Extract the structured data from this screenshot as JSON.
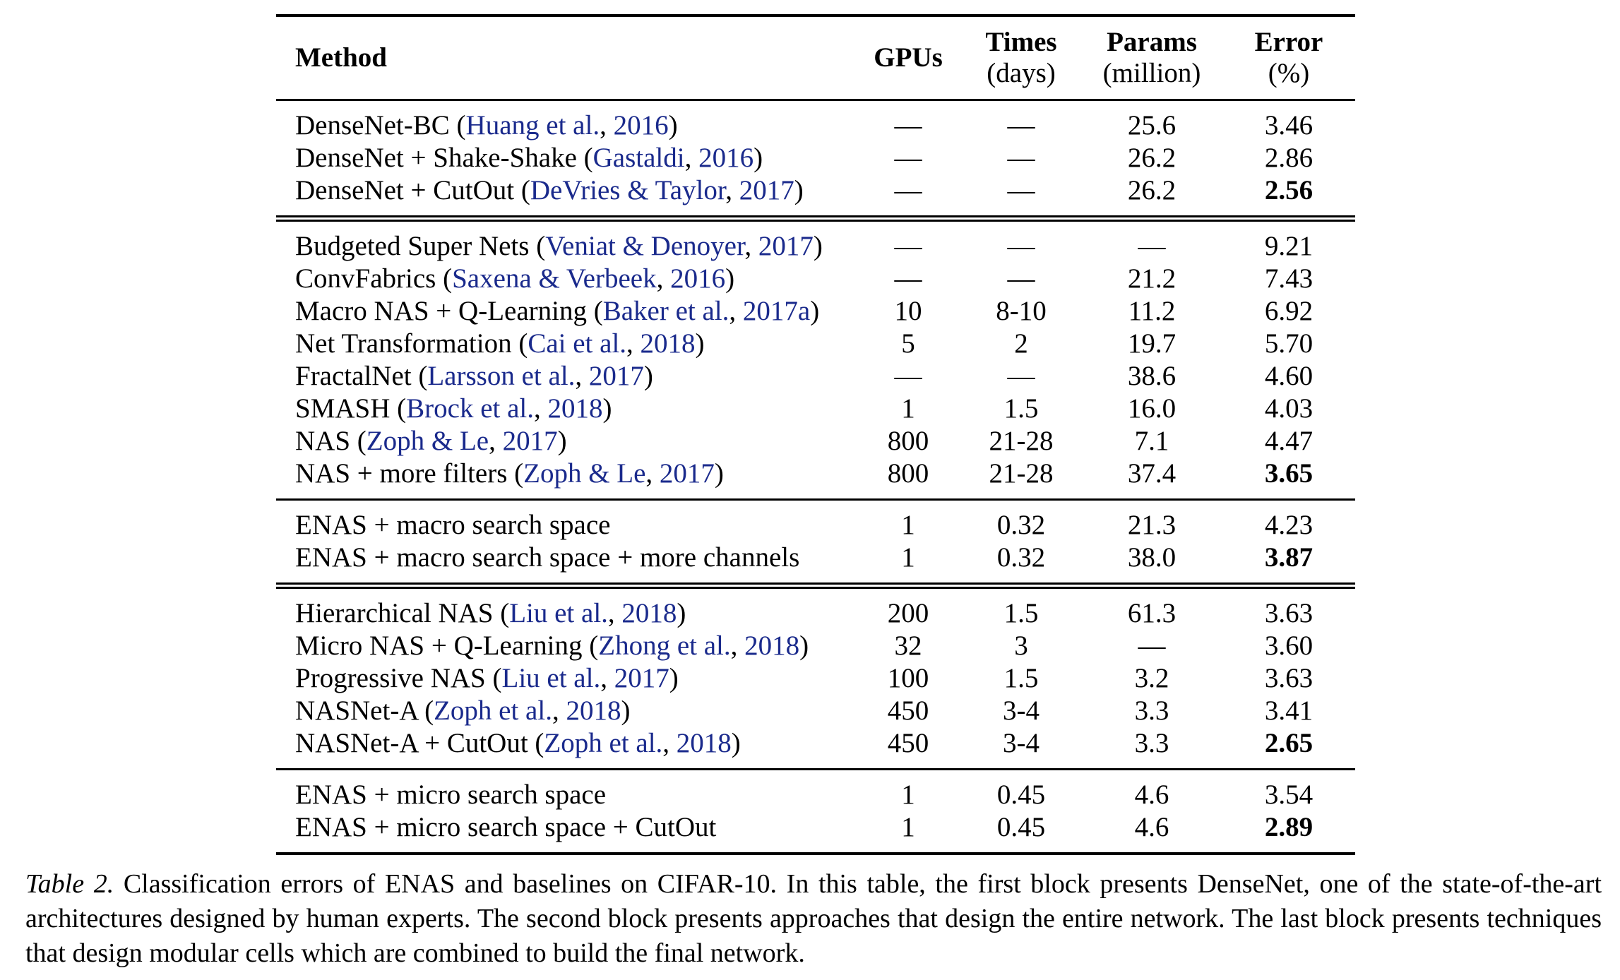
{
  "table": {
    "headers": {
      "method": "Method",
      "gpus": "GPUs",
      "times": "Times",
      "times_unit": "(days)",
      "params": "Params",
      "params_unit": "(million)",
      "error": "Error",
      "error_unit": "(%)"
    },
    "blocks": [
      {
        "rows": [
          {
            "name": "DenseNet-BC",
            "open": " (",
            "ref": "Huang et al.",
            "sep": ", ",
            "year": "2016",
            "close": ")",
            "gpus": "—",
            "times": "—",
            "params": "25.6",
            "error": "3.46",
            "bold": false
          },
          {
            "name": "DenseNet + Shake-Shake",
            "open": " (",
            "ref": "Gastaldi",
            "sep": ", ",
            "year": "2016",
            "close": ")",
            "gpus": "—",
            "times": "—",
            "params": "26.2",
            "error": "2.86",
            "bold": false
          },
          {
            "name": "DenseNet + CutOut",
            "open": " (",
            "ref": "DeVries & Taylor",
            "sep": ", ",
            "year": "2017",
            "close": ")",
            "gpus": "—",
            "times": "—",
            "params": "26.2",
            "error": "2.56",
            "bold": true
          }
        ]
      },
      {
        "rows": [
          {
            "name": "Budgeted Super Nets",
            "open": " (",
            "ref": "Veniat & Denoyer",
            "sep": ", ",
            "year": "2017",
            "close": ")",
            "gpus": "—",
            "times": "—",
            "params": "—",
            "error": "9.21",
            "bold": false
          },
          {
            "name": "ConvFabrics",
            "open": " (",
            "ref": "Saxena & Verbeek",
            "sep": ", ",
            "year": "2016",
            "close": ")",
            "gpus": "—",
            "times": "—",
            "params": "21.2",
            "error": "7.43",
            "bold": false
          },
          {
            "name": "Macro NAS + Q-Learning",
            "open": " (",
            "ref": "Baker et al.",
            "sep": ", ",
            "year": "2017a",
            "close": ")",
            "gpus": "10",
            "times": "8-10",
            "params": "11.2",
            "error": "6.92",
            "bold": false
          },
          {
            "name": "Net Transformation",
            "open": " (",
            "ref": "Cai et al.",
            "sep": ", ",
            "year": "2018",
            "close": ")",
            "gpus": "5",
            "times": "2",
            "params": "19.7",
            "error": "5.70",
            "bold": false
          },
          {
            "name": "FractalNet",
            "open": " (",
            "ref": "Larsson et al.",
            "sep": ", ",
            "year": "2017",
            "close": ")",
            "gpus": "—",
            "times": "—",
            "params": "38.6",
            "error": "4.60",
            "bold": false
          },
          {
            "name": "SMASH",
            "open": " (",
            "ref": "Brock et al.",
            "sep": ", ",
            "year": "2018",
            "close": ")",
            "gpus": "1",
            "times": "1.5",
            "params": "16.0",
            "error": "4.03",
            "bold": false
          },
          {
            "name": "NAS",
            "open": " (",
            "ref": "Zoph & Le",
            "sep": ", ",
            "year": "2017",
            "close": ")",
            "gpus": "800",
            "times": "21-28",
            "params": "7.1",
            "error": "4.47",
            "bold": false
          },
          {
            "name": "NAS + more filters",
            "open": " (",
            "ref": "Zoph & Le",
            "sep": ", ",
            "year": "2017",
            "close": ")",
            "gpus": "800",
            "times": "21-28",
            "params": "37.4",
            "error": "3.65",
            "bold": true
          }
        ]
      },
      {
        "rows": [
          {
            "name": "ENAS + macro search space",
            "open": "",
            "ref": "",
            "sep": "",
            "year": "",
            "close": "",
            "gpus": "1",
            "times": "0.32",
            "params": "21.3",
            "error": "4.23",
            "bold": false
          },
          {
            "name": "ENAS + macro search space + more channels",
            "open": "",
            "ref": "",
            "sep": "",
            "year": "",
            "close": "",
            "gpus": "1",
            "times": "0.32",
            "params": "38.0",
            "error": "3.87",
            "bold": true
          }
        ]
      },
      {
        "rows": [
          {
            "name": "Hierarchical NAS",
            "open": " (",
            "ref": "Liu et al.",
            "sep": ", ",
            "year": "2018",
            "close": ")",
            "gpus": "200",
            "times": "1.5",
            "params": "61.3",
            "error": "3.63",
            "bold": false
          },
          {
            "name": "Micro NAS + Q-Learning",
            "open": " (",
            "ref": "Zhong et al.",
            "sep": ", ",
            "year": "2018",
            "close": ")",
            "gpus": "32",
            "times": "3",
            "params": "—",
            "error": "3.60",
            "bold": false
          },
          {
            "name": "Progressive NAS",
            "open": " (",
            "ref": "Liu et al.",
            "sep": ", ",
            "year": "2017",
            "close": ")",
            "gpus": "100",
            "times": "1.5",
            "params": "3.2",
            "error": "3.63",
            "bold": false
          },
          {
            "name": "NASNet-A",
            "open": " (",
            "ref": "Zoph et al.",
            "sep": ", ",
            "year": "2018",
            "close": ")",
            "gpus": "450",
            "times": "3-4",
            "params": "3.3",
            "error": "3.41",
            "bold": false
          },
          {
            "name": "NASNet-A + CutOut",
            "open": " (",
            "ref": "Zoph et al.",
            "sep": ", ",
            "year": "2018",
            "close": ")",
            "gpus": "450",
            "times": "3-4",
            "params": "3.3",
            "error": "2.65",
            "bold": true
          }
        ]
      },
      {
        "rows": [
          {
            "name": "ENAS + micro search space",
            "open": "",
            "ref": "",
            "sep": "",
            "year": "",
            "close": "",
            "gpus": "1",
            "times": "0.45",
            "params": "4.6",
            "error": "3.54",
            "bold": false
          },
          {
            "name": "ENAS + micro search space + CutOut",
            "open": "",
            "ref": "",
            "sep": "",
            "year": "",
            "close": "",
            "gpus": "1",
            "times": "0.45",
            "params": "4.6",
            "error": "2.89",
            "bold": true
          }
        ]
      }
    ],
    "block_separators": [
      "single",
      "double",
      "single",
      "double",
      "single"
    ]
  },
  "caption": {
    "label": "Table 2.",
    "text": " Classification errors of ENAS and baselines on CIFAR-10. In this table, the first block presents DenseNet, one of the state-of-the-art architectures designed by human experts. The second block presents approaches that design the entire network. The last block presents techniques that design modular cells which are combined to build the final network."
  },
  "colors": {
    "citation": "#1a2a8c",
    "text": "#000000"
  }
}
